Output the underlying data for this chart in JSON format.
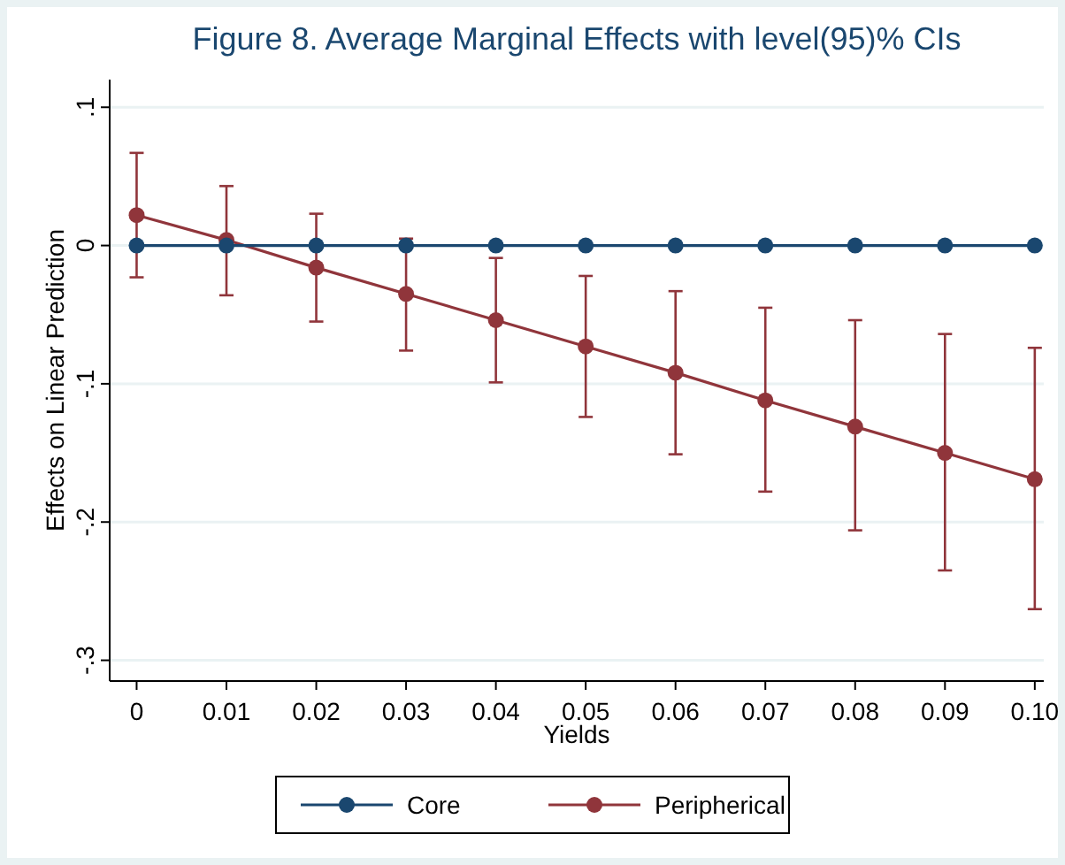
{
  "chart_data": {
    "type": "line",
    "title": "Figure 8. Average Marginal Effects with level(95)% CIs",
    "xlabel": "Yields",
    "ylabel": "Effects on Linear Prediction",
    "x": [
      0,
      0.01,
      0.02,
      0.03,
      0.04,
      0.05,
      0.06,
      0.07,
      0.08,
      0.09,
      0.1
    ],
    "series": [
      {
        "name": "Core",
        "color": "#1a476f",
        "values": [
          0,
          0,
          0,
          0,
          0,
          0,
          0,
          0,
          0,
          0,
          0
        ]
      },
      {
        "name": "Peripherical",
        "color": "#90353b",
        "values": [
          0.022,
          0.004,
          -0.016,
          -0.035,
          -0.054,
          -0.073,
          -0.092,
          -0.112,
          -0.131,
          -0.15,
          -0.169
        ],
        "errors": [
          [
            -0.023,
            0.067
          ],
          [
            -0.036,
            0.043
          ],
          [
            -0.055,
            0.023
          ],
          [
            -0.076,
            0.005
          ],
          [
            -0.099,
            -0.009
          ],
          [
            -0.124,
            -0.022
          ],
          [
            -0.151,
            -0.033
          ],
          [
            -0.178,
            -0.045
          ],
          [
            -0.206,
            -0.054
          ],
          [
            -0.235,
            -0.064
          ],
          [
            -0.263,
            -0.074
          ]
        ]
      }
    ],
    "xlim": [
      -0.003,
      0.101
    ],
    "xticks": [
      0,
      0.01,
      0.02,
      0.03,
      0.04,
      0.05,
      0.06,
      0.07,
      0.08,
      0.09,
      {
        "value": 0.1,
        "label": "0.10"
      }
    ],
    "ylim": [
      -0.315,
      0.12
    ],
    "yticks": [
      {
        "value": -0.3,
        "label": "-.3"
      },
      {
        "value": -0.2,
        "label": "-.2"
      },
      {
        "value": -0.1,
        "label": "-.1"
      },
      0,
      {
        "value": 0.1,
        "label": ".1"
      }
    ],
    "grid": "y",
    "legend": "bottom",
    "marker": "circle",
    "line_style": "solid"
  }
}
